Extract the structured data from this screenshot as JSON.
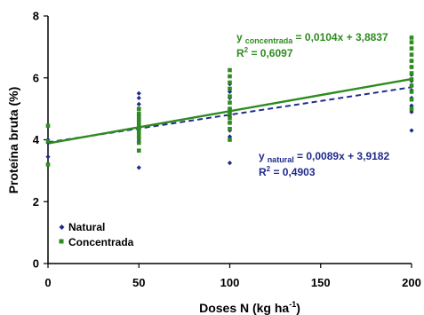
{
  "chart_data": {
    "type": "scatter",
    "xlabel": "Doses N (kg ha",
    "xlabel_sup": "-1",
    "xlabel_end": ")",
    "ylabel": "Proteína bruta (%)",
    "xlim": [
      0,
      200
    ],
    "ylim": [
      0,
      8
    ],
    "xticks": [
      0,
      50,
      100,
      150,
      200
    ],
    "yticks": [
      0,
      2,
      4,
      6,
      8
    ],
    "grid": false,
    "legend_position": "bottom-left",
    "series": [
      {
        "name": "Natural",
        "marker": "diamond",
        "color": "#1f2a8c",
        "points": [
          [
            0,
            3.45
          ],
          [
            0,
            3.9
          ],
          [
            0,
            4.0
          ],
          [
            50,
            3.1
          ],
          [
            50,
            3.95
          ],
          [
            50,
            4.3
          ],
          [
            50,
            4.6
          ],
          [
            50,
            4.8
          ],
          [
            50,
            5.0
          ],
          [
            50,
            5.15
          ],
          [
            50,
            5.35
          ],
          [
            50,
            5.5
          ],
          [
            100,
            3.25
          ],
          [
            100,
            4.1
          ],
          [
            100,
            4.3
          ],
          [
            100,
            4.55
          ],
          [
            100,
            4.75
          ],
          [
            100,
            5.0
          ],
          [
            100,
            5.35
          ],
          [
            100,
            5.55
          ],
          [
            100,
            5.8
          ],
          [
            200,
            4.3
          ],
          [
            200,
            4.9
          ],
          [
            200,
            5.1
          ],
          [
            200,
            5.35
          ],
          [
            200,
            5.6
          ],
          [
            200,
            5.9
          ],
          [
            200,
            6.1
          ],
          [
            200,
            6.35
          ],
          [
            200,
            6.55
          ]
        ]
      },
      {
        "name": "Concentrada",
        "marker": "square",
        "color": "#2e8b1f",
        "points": [
          [
            0,
            3.2
          ],
          [
            0,
            3.95
          ],
          [
            0,
            4.45
          ],
          [
            50,
            3.65
          ],
          [
            50,
            3.9
          ],
          [
            50,
            4.05
          ],
          [
            50,
            4.15
          ],
          [
            50,
            4.25
          ],
          [
            50,
            4.35
          ],
          [
            50,
            4.45
          ],
          [
            50,
            4.55
          ],
          [
            50,
            4.65
          ],
          [
            50,
            4.75
          ],
          [
            50,
            4.85
          ],
          [
            50,
            5.0
          ],
          [
            100,
            4.0
          ],
          [
            100,
            4.35
          ],
          [
            100,
            4.55
          ],
          [
            100,
            4.7
          ],
          [
            100,
            4.85
          ],
          [
            100,
            5.0
          ],
          [
            100,
            5.2
          ],
          [
            100,
            5.4
          ],
          [
            100,
            5.65
          ],
          [
            100,
            5.85
          ],
          [
            100,
            6.05
          ],
          [
            100,
            6.25
          ],
          [
            200,
            5.0
          ],
          [
            200,
            5.3
          ],
          [
            200,
            5.55
          ],
          [
            200,
            5.75
          ],
          [
            200,
            5.95
          ],
          [
            200,
            6.15
          ],
          [
            200,
            6.35
          ],
          [
            200,
            6.55
          ],
          [
            200,
            6.75
          ],
          [
            200,
            6.95
          ],
          [
            200,
            7.15
          ],
          [
            200,
            7.3
          ]
        ]
      }
    ],
    "regressions": [
      {
        "series": "Natural",
        "slope": 0.0089,
        "intercept": 3.9182,
        "style": "dashed",
        "color": "#1f2a8c",
        "eq_prefix": "y",
        "eq_sub": "natural",
        "eq_rest": " = 0,0089x + 3,9182",
        "r2_prefix": "R",
        "r2_sup": "2",
        "r2_rest": " = 0,4903"
      },
      {
        "series": "Concentrada",
        "slope": 0.0104,
        "intercept": 3.8837,
        "style": "solid",
        "color": "#2e8b1f",
        "eq_prefix": "y",
        "eq_sub": "concentrada",
        "eq_rest": " = 0,0104x + 3,8837",
        "r2_prefix": "R",
        "r2_sup": "2",
        "r2_rest": " = 0,6097"
      }
    ]
  }
}
